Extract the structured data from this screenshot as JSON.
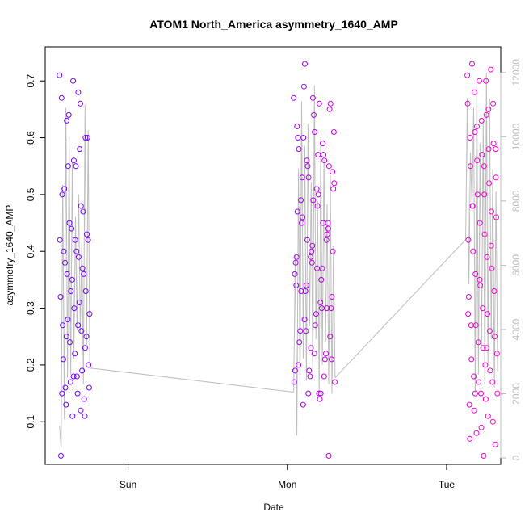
{
  "chart_data": {
    "type": "scatter",
    "title": "ATOM1 North_America asymmetry_1640_AMP",
    "xlabel": "Date",
    "ylabel": "asymmetry_1640_AMP",
    "x_ticks": [
      "Sun",
      "Mon",
      "Tue"
    ],
    "x_tick_pos": [
      0.5,
      1.5,
      2.5
    ],
    "xlim": [
      -0.02,
      2.84
    ],
    "ylim": [
      0.025,
      0.76
    ],
    "y_ticks": [
      0.1,
      0.2,
      0.3,
      0.4,
      0.5,
      0.6,
      0.7
    ],
    "y2lim": [
      -200,
      12800
    ],
    "y2_ticks": [
      0,
      2000,
      4000,
      6000,
      8000,
      10000,
      12000
    ],
    "grid": false,
    "legend": "none",
    "colors": {
      "early": "#6a00ff",
      "late": "#ff00cc",
      "line": "#bdbdbd"
    },
    "series": [
      {
        "axis": "left",
        "marker": "open-circle",
        "x_start": 0.07,
        "x_end": 0.26,
        "color_t_start": 0.0,
        "color_t_end": 0.08,
        "values": [
          0.71,
          0.68,
          0.63,
          0.6,
          0.56,
          0.5,
          0.48,
          0.45,
          0.42,
          0.4,
          0.38,
          0.36,
          0.35,
          0.32,
          0.31,
          0.28,
          0.25,
          0.22,
          0.21,
          0.19,
          0.17,
          0.16,
          0.15,
          0.13,
          0.11,
          0.7,
          0.67,
          0.66,
          0.64,
          0.6,
          0.55,
          0.51,
          0.47,
          0.44,
          0.42,
          0.39,
          0.36,
          0.33,
          0.3,
          0.27,
          0.26,
          0.24,
          0.2,
          0.18,
          0.16,
          0.14,
          0.11,
          0.04,
          0.58,
          0.55,
          0.43,
          0.42,
          0.4,
          0.37,
          0.33,
          0.29,
          0.27,
          0.25,
          0.23,
          0.18,
          0.15,
          0.12
        ]
      },
      {
        "axis": "left",
        "marker": "open-circle",
        "x_start": 1.54,
        "x_end": 1.8,
        "color_t_start": 0.35,
        "color_t_end": 0.65,
        "values": [
          0.67,
          0.66,
          0.6,
          0.55,
          0.49,
          0.47,
          0.45,
          0.42,
          0.4,
          0.37,
          0.33,
          0.3,
          0.23,
          0.19,
          0.15,
          0.73,
          0.66,
          0.61,
          0.58,
          0.56,
          0.53,
          0.52,
          0.5,
          0.46,
          0.44,
          0.41,
          0.39,
          0.37,
          0.34,
          0.32,
          0.29,
          0.26,
          0.22,
          0.18,
          0.17,
          0.14,
          0.69,
          0.65,
          0.64,
          0.6,
          0.57,
          0.55,
          0.51,
          0.48,
          0.45,
          0.43,
          0.4,
          0.38,
          0.35,
          0.33,
          0.3,
          0.27,
          0.24,
          0.21,
          0.19,
          0.17,
          0.15,
          0.13,
          0.04,
          0.67,
          0.62,
          0.59,
          0.56,
          0.54,
          0.51,
          0.49,
          0.42,
          0.39,
          0.36,
          0.31,
          0.28,
          0.25,
          0.22,
          0.2,
          0.18,
          0.15,
          0.61,
          0.57,
          0.53,
          0.45,
          0.38,
          0.34,
          0.3,
          0.26,
          0.21
        ]
      },
      {
        "axis": "left",
        "marker": "open-circle",
        "x_start": 2.63,
        "x_end": 2.82,
        "color_t_start": 0.8,
        "color_t_end": 1.0,
        "values": [
          0.71,
          0.7,
          0.68,
          0.66,
          0.63,
          0.6,
          0.58,
          0.56,
          0.53,
          0.5,
          0.48,
          0.47,
          0.45,
          0.42,
          0.39,
          0.36,
          0.33,
          0.3,
          0.27,
          0.26,
          0.24,
          0.22,
          0.2,
          0.18,
          0.17,
          0.15,
          0.13,
          0.11,
          0.08,
          0.06,
          0.04,
          0.73,
          0.72,
          0.7,
          0.66,
          0.64,
          0.61,
          0.59,
          0.57,
          0.55,
          0.52,
          0.5,
          0.46,
          0.43,
          0.4,
          0.37,
          0.34,
          0.32,
          0.29,
          0.27,
          0.25,
          0.23,
          0.21,
          0.19,
          0.17,
          0.15,
          0.14,
          0.12,
          0.1,
          0.09,
          0.07,
          0.65,
          0.62,
          0.58,
          0.55,
          0.48,
          0.41,
          0.35,
          0.29,
          0.23,
          0.15
        ]
      }
    ],
    "line_series": {
      "axis": "right",
      "segments": [
        {
          "x": [
            0.07,
            0.08,
            0.09,
            0.1,
            0.11,
            0.12,
            0.13,
            0.14,
            0.15,
            0.16,
            0.17,
            0.18,
            0.19,
            0.2,
            0.21,
            0.22,
            0.23,
            0.24,
            0.25,
            0.26
          ],
          "y": [
            1000,
            300,
            8500,
            1200,
            10900,
            2500,
            10000,
            2600,
            9200,
            3100,
            7500,
            4000,
            8200,
            3900,
            6800,
            2300,
            11000,
            3500,
            10200,
            2800
          ]
        },
        {
          "x": [
            0.26,
            1.54
          ],
          "y": [
            2800,
            2050
          ]
        },
        {
          "x": [
            1.54,
            1.55,
            1.56,
            1.57,
            1.58,
            1.59,
            1.6,
            1.61,
            1.62,
            1.63,
            1.64,
            1.65,
            1.66,
            1.67,
            1.68,
            1.69,
            1.7,
            1.71,
            1.72,
            1.73,
            1.74,
            1.75,
            1.76,
            1.77,
            1.78,
            1.79,
            1.8
          ],
          "y": [
            2050,
            6300,
            700,
            9000,
            2200,
            11100,
            3100,
            9700,
            2400,
            10400,
            4100,
            8600,
            2600,
            11600,
            3700,
            8000,
            2000,
            10000,
            2900,
            9300,
            3600,
            7900,
            2300,
            8800,
            2000,
            6600,
            2500
          ]
        },
        {
          "x": [
            1.8,
            2.62
          ],
          "y": [
            2500,
            6800
          ]
        },
        {
          "x": [
            2.62,
            2.63,
            2.64,
            2.65,
            2.66,
            2.67,
            2.68,
            2.69,
            2.7,
            2.71,
            2.72,
            2.73,
            2.74,
            2.75,
            2.76,
            2.77,
            2.78,
            2.79,
            2.8,
            2.81,
            2.82
          ],
          "y": [
            6800,
            11200,
            5400,
            9500,
            7800,
            10900,
            2000,
            11700,
            2600,
            9800,
            3400,
            10500,
            2300,
            12000,
            2900,
            11200,
            3700,
            9000,
            2200,
            8300,
            2700
          ]
        }
      ]
    }
  }
}
